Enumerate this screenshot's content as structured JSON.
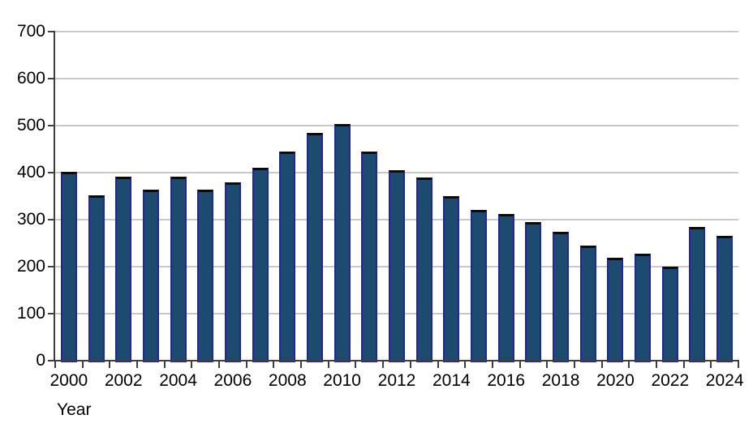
{
  "chart_data": {
    "type": "bar",
    "title": "",
    "xlabel": "Year",
    "ylabel": "",
    "categories": [
      "2000",
      "2001",
      "2002",
      "2003",
      "2004",
      "2005",
      "2006",
      "2007",
      "2008",
      "2009",
      "2010",
      "2011",
      "2012",
      "2013",
      "2014",
      "2015",
      "2016",
      "2017",
      "2018",
      "2019",
      "2020",
      "2021",
      "2022",
      "2023",
      "2024"
    ],
    "values": [
      402,
      351,
      392,
      364,
      392,
      364,
      379,
      410,
      445,
      485,
      504,
      445,
      405,
      390,
      350,
      320,
      312,
      294,
      275,
      244,
      219,
      228,
      200,
      284,
      266
    ],
    "ylim": [
      0,
      700
    ],
    "yticks": [
      0,
      100,
      200,
      300,
      400,
      500,
      600,
      700
    ],
    "xtick_labels": [
      "2000",
      "2002",
      "2004",
      "2006",
      "2008",
      "2010",
      "2012",
      "2014",
      "2016",
      "2018",
      "2020",
      "2022",
      "2024"
    ],
    "grid": "horizontal-only",
    "legend": "none",
    "colors": {
      "bar_fill": "#1D4A6F",
      "bar_border": "#24249E",
      "bar_top_border": "#0B0B0B",
      "gridline": "#C9C9C9",
      "axis": "#3F3F3F",
      "text": "#000000",
      "background": "#FFFFFF"
    }
  }
}
